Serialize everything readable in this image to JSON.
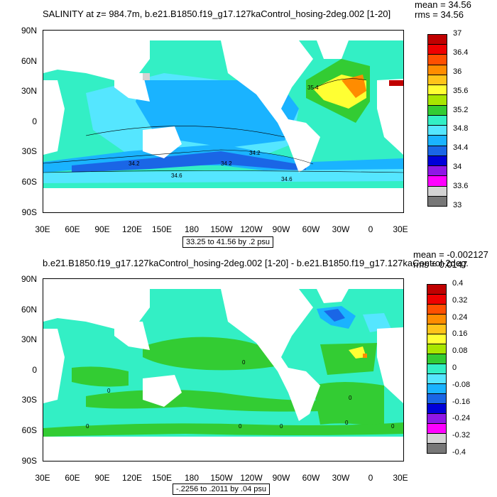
{
  "colors": {
    "land": "#ffffff",
    "sea_ice": "#d0d0d0"
  },
  "panels": [
    {
      "id": "salinity",
      "title": "SALINITY at z= 984.7m, b.e21.B1850.f19_g17.127kaControl_hosing-2deg.002 [1-20]",
      "mean": "mean = 34.56",
      "rms": "rms = 34.56",
      "range": "33.25 to 41.56 by .2 psu",
      "lat_labels": [
        "90N",
        "60N",
        "30N",
        "0",
        "30S",
        "60S",
        "90S"
      ],
      "lon_labels": [
        "30E",
        "60E",
        "90E",
        "120E",
        "150E",
        "180",
        "150W",
        "120W",
        "90W",
        "60W",
        "30W",
        "0",
        "30E"
      ],
      "legend": {
        "labels": [
          "37",
          "36.4",
          "36",
          "35.6",
          "35.2",
          "34.8",
          "34.4",
          "34",
          "33.6",
          "33"
        ],
        "colors": [
          "#c00000",
          "#ee0000",
          "#ff4f00",
          "#ff8c00",
          "#ffc41a",
          "#ffff33",
          "#a8e600",
          "#33cc33",
          "#33efc5",
          "#55e6ff",
          "#1ab3ff",
          "#1a66e6",
          "#0000d9",
          "#8f17e6",
          "#ff00ff",
          "#d3d3d3",
          "#777777"
        ]
      },
      "contour_labels": [
        "35.4",
        "34.2",
        "34.2",
        "34.2",
        "34.6",
        "34.6"
      ]
    },
    {
      "id": "difference",
      "title": "b.e21.B1850.f19_g17.127kaControl_hosing-2deg.002 [1-20] - b.e21.B1850.f19_g17.127kaControl-2deg.",
      "mean": "mean = -0.002127",
      "rms": "rms = 0.0147",
      "range": "-.2256 to .2011 by .04 psu",
      "lat_labels": [
        "90N",
        "60N",
        "30N",
        "0",
        "30S",
        "60S",
        "90S"
      ],
      "lon_labels": [
        "30E",
        "60E",
        "90E",
        "120E",
        "150E",
        "180",
        "150W",
        "120W",
        "90W",
        "60W",
        "30W",
        "0",
        "30E"
      ],
      "legend": {
        "labels": [
          "0.4",
          "0.32",
          "0.24",
          "0.16",
          "0.08",
          "0",
          "-0.08",
          "-0.16",
          "-0.24",
          "-0.32",
          "-0.4"
        ],
        "colors": [
          "#c00000",
          "#ee0000",
          "#ff4f00",
          "#ff8c00",
          "#ffc41a",
          "#ffff33",
          "#a8e600",
          "#33cc33",
          "#33efc5",
          "#55e6ff",
          "#1ab3ff",
          "#1a66e6",
          "#0000d9",
          "#8f17e6",
          "#ff00ff",
          "#d3d3d3",
          "#777777"
        ]
      },
      "contour_labels": [
        "0",
        "0",
        "0",
        "0",
        "0",
        "0",
        "0",
        "0"
      ]
    }
  ]
}
